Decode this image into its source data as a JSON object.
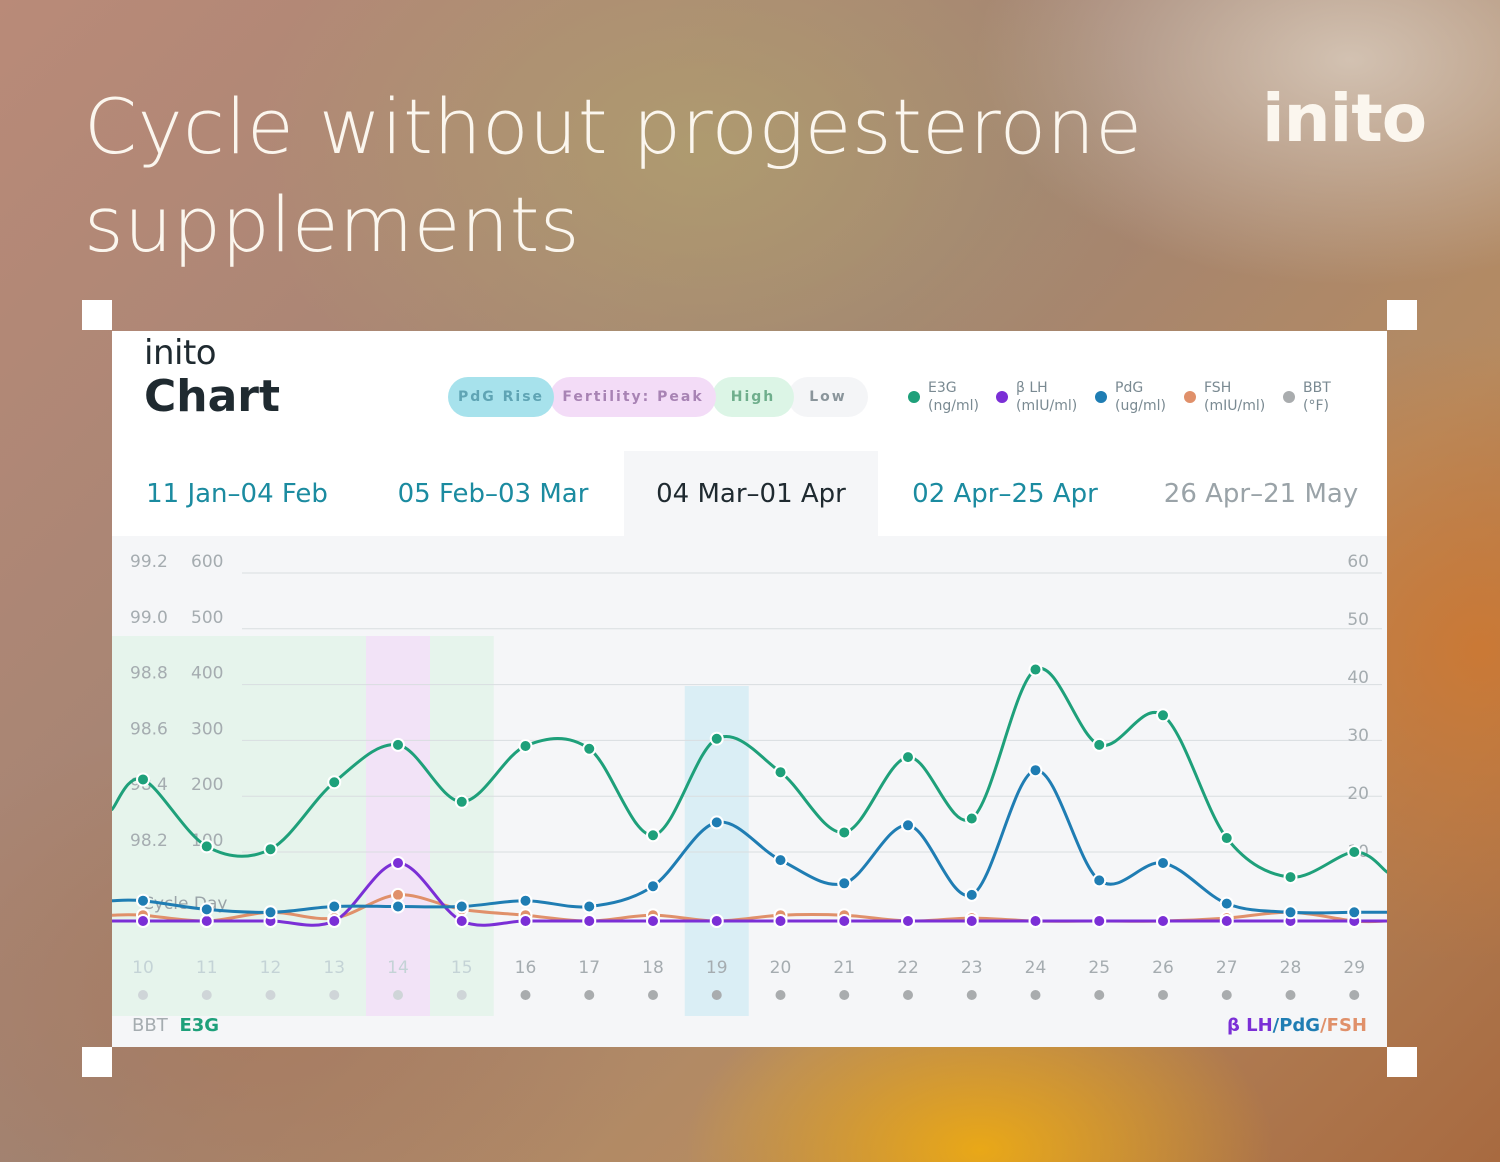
{
  "headline": "Cycle without progesterone supplements",
  "brand": "inito",
  "card": {
    "brand": "inito",
    "title": "Chart",
    "pills": [
      {
        "label": "PdG Rise",
        "bg": "#a7e2ec",
        "color": "#5fa4b4"
      },
      {
        "label": "Fertility: Peak",
        "bg": "#f3dcf7",
        "color": "#a883b4"
      },
      {
        "label": "High",
        "bg": "#dcf5e6",
        "color": "#6fae8c"
      },
      {
        "label": "Low",
        "bg": "#f4f5f7",
        "color": "#8a959b"
      }
    ],
    "legend": [
      {
        "line1": "E3G",
        "line2": "(ng/ml)",
        "color": "#1ea07a"
      },
      {
        "line1": "β LH",
        "line2": "(mIU/ml)",
        "color": "#7b2fd6"
      },
      {
        "line1": "PdG",
        "line2": "(ug/ml)",
        "color": "#1f7db3"
      },
      {
        "line1": "FSH",
        "line2": "(mIU/ml)",
        "color": "#e0906a"
      },
      {
        "line1": "BBT",
        "line2": "(°F)",
        "color": "#a9acae"
      }
    ],
    "tabs": [
      {
        "label": "11 Jan–04 Feb",
        "color": "#1b8ba0"
      },
      {
        "label": "05 Feb–03 Mar",
        "color": "#1b8ba0"
      },
      {
        "label": "04 Mar–01 Apr",
        "color": "#1f2a30",
        "active": true
      },
      {
        "label": "02 Apr–25 Apr",
        "color": "#1b8ba0"
      },
      {
        "label": "26 Apr–21 May",
        "color": "#9aa3a8"
      }
    ],
    "bottom_left": {
      "bbt": "BBT",
      "e3g": "E3G"
    },
    "bottom_right": {
      "lh": "β LH",
      "sep1": "/",
      "pdg": "PdG",
      "sep2": "/",
      "fsh": "FSH"
    },
    "cycle_day_label": "Cycle Day"
  },
  "colors": {
    "e3g": "#1ea07a",
    "lh": "#7b2fd6",
    "pdg": "#1f7db3",
    "fsh": "#e0906a",
    "bbt": "#a9acae",
    "highlight_peak": "#f1e2f7",
    "highlight_high": "#e4f4ea",
    "highlight_pdg": "#d8edf4"
  },
  "chart_data": {
    "type": "line",
    "x": [
      10,
      11,
      12,
      13,
      14,
      15,
      16,
      17,
      18,
      19,
      20,
      21,
      22,
      23,
      24,
      25,
      26,
      27,
      28,
      29
    ],
    "series": [
      {
        "name": "E3G",
        "axis": "E3G (ng/ml)",
        "values": [
          230,
          110,
          105,
          225,
          292,
          190,
          290,
          285,
          130,
          303,
          243,
          135,
          270,
          160,
          427,
          292,
          345,
          125,
          55,
          100
        ]
      },
      {
        "name": "β LH",
        "axis": "β LH/PdG/FSH",
        "values": [
          0,
          0,
          0,
          0,
          10,
          0,
          0,
          0,
          0,
          0,
          0,
          0,
          0,
          0,
          0,
          0,
          0,
          0,
          0,
          0
        ]
      },
      {
        "name": "PdG",
        "axis": "β LH/PdG/FSH",
        "values": [
          3.5,
          2,
          1.5,
          2.5,
          2.5,
          2.5,
          3.5,
          2.5,
          6,
          17,
          10.5,
          6.5,
          16.5,
          4.5,
          26,
          7,
          10,
          3,
          1.5,
          1.5
        ]
      },
      {
        "name": "FSH",
        "axis": "β LH/PdG/FSH",
        "values": [
          1,
          0,
          1.5,
          0.5,
          4.5,
          2,
          1,
          0,
          1,
          0,
          1,
          1,
          0,
          0.5,
          0,
          0,
          0,
          0.5,
          1.5,
          0
        ]
      }
    ],
    "categories": {
      "peak_days": [
        14
      ],
      "high_days": [
        10,
        11,
        12,
        13,
        15
      ],
      "pdg_rise_days": [
        19
      ]
    },
    "y_left_bbt": {
      "ticks": [
        98.2,
        98.4,
        98.6,
        98.8,
        99.0,
        99.2
      ],
      "label": "BBT"
    },
    "y_left_e3g": {
      "ticks": [
        100,
        200,
        300,
        400,
        500,
        600
      ],
      "range": [
        -40,
        600
      ],
      "label": "E3G"
    },
    "y_right": {
      "ticks": [
        10,
        20,
        30,
        40,
        50,
        60
      ],
      "range": [
        0,
        60
      ],
      "label": "β LH/PdG/FSH"
    },
    "xlabel": "Cycle Day",
    "grid": true
  }
}
